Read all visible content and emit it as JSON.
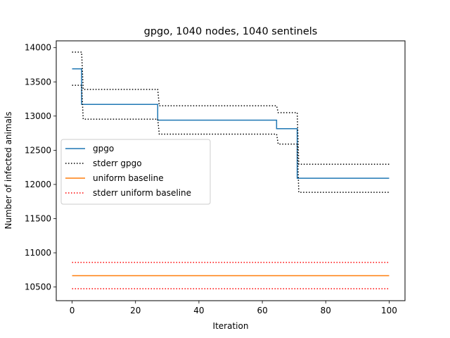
{
  "chart_data": {
    "type": "line",
    "title": "gpgo, 1040 nodes, 1040 sentinels",
    "xlabel": "Iteration",
    "ylabel": "Number of infected animals",
    "xlim": [
      -5,
      105
    ],
    "ylim": [
      10300,
      14100
    ],
    "xticks": [
      0,
      20,
      40,
      60,
      80,
      100
    ],
    "yticks": [
      10500,
      11000,
      11500,
      12000,
      12500,
      13000,
      13500,
      14000
    ],
    "legend_position": "center-left",
    "grid": false,
    "series": [
      {
        "name": "gpgo",
        "color": "#1f77b4",
        "style": "solid",
        "points": [
          [
            0,
            13690
          ],
          [
            3,
            13690
          ],
          [
            3,
            13170
          ],
          [
            27,
            13170
          ],
          [
            27,
            12940
          ],
          [
            64.5,
            12940
          ],
          [
            64.5,
            12815
          ],
          [
            71,
            12815
          ],
          [
            71,
            12090
          ],
          [
            100,
            12090
          ]
        ]
      },
      {
        "name": "stderr gpgo",
        "color": "#000000",
        "style": "dotted",
        "points": [
          [
            0,
            13935
          ],
          [
            3,
            13935
          ],
          [
            3.5,
            13390
          ],
          [
            27,
            13390
          ],
          [
            27.5,
            13150
          ],
          [
            64.5,
            13150
          ],
          [
            65,
            13050
          ],
          [
            71,
            13050
          ],
          [
            71.5,
            12295
          ],
          [
            100,
            12295
          ]
        ]
      },
      {
        "name": "",
        "color": "#000000",
        "style": "dotted",
        "points": [
          [
            0,
            13450
          ],
          [
            3,
            13450
          ],
          [
            3.5,
            12955
          ],
          [
            27,
            12955
          ],
          [
            27.5,
            12735
          ],
          [
            64.5,
            12735
          ],
          [
            65,
            12590
          ],
          [
            71,
            12590
          ],
          [
            71.5,
            11885
          ],
          [
            100,
            11885
          ]
        ]
      },
      {
        "name": "uniform baseline",
        "color": "#ff7f0e",
        "style": "solid",
        "points": [
          [
            0,
            10665
          ],
          [
            100,
            10665
          ]
        ]
      },
      {
        "name": "stderr uniform baseline",
        "color": "#ff0000",
        "style": "dotted",
        "points": [
          [
            0,
            10860
          ],
          [
            100,
            10860
          ]
        ]
      },
      {
        "name": "",
        "color": "#ff0000",
        "style": "dotted",
        "points": [
          [
            0,
            10475
          ],
          [
            100,
            10475
          ]
        ]
      }
    ]
  }
}
